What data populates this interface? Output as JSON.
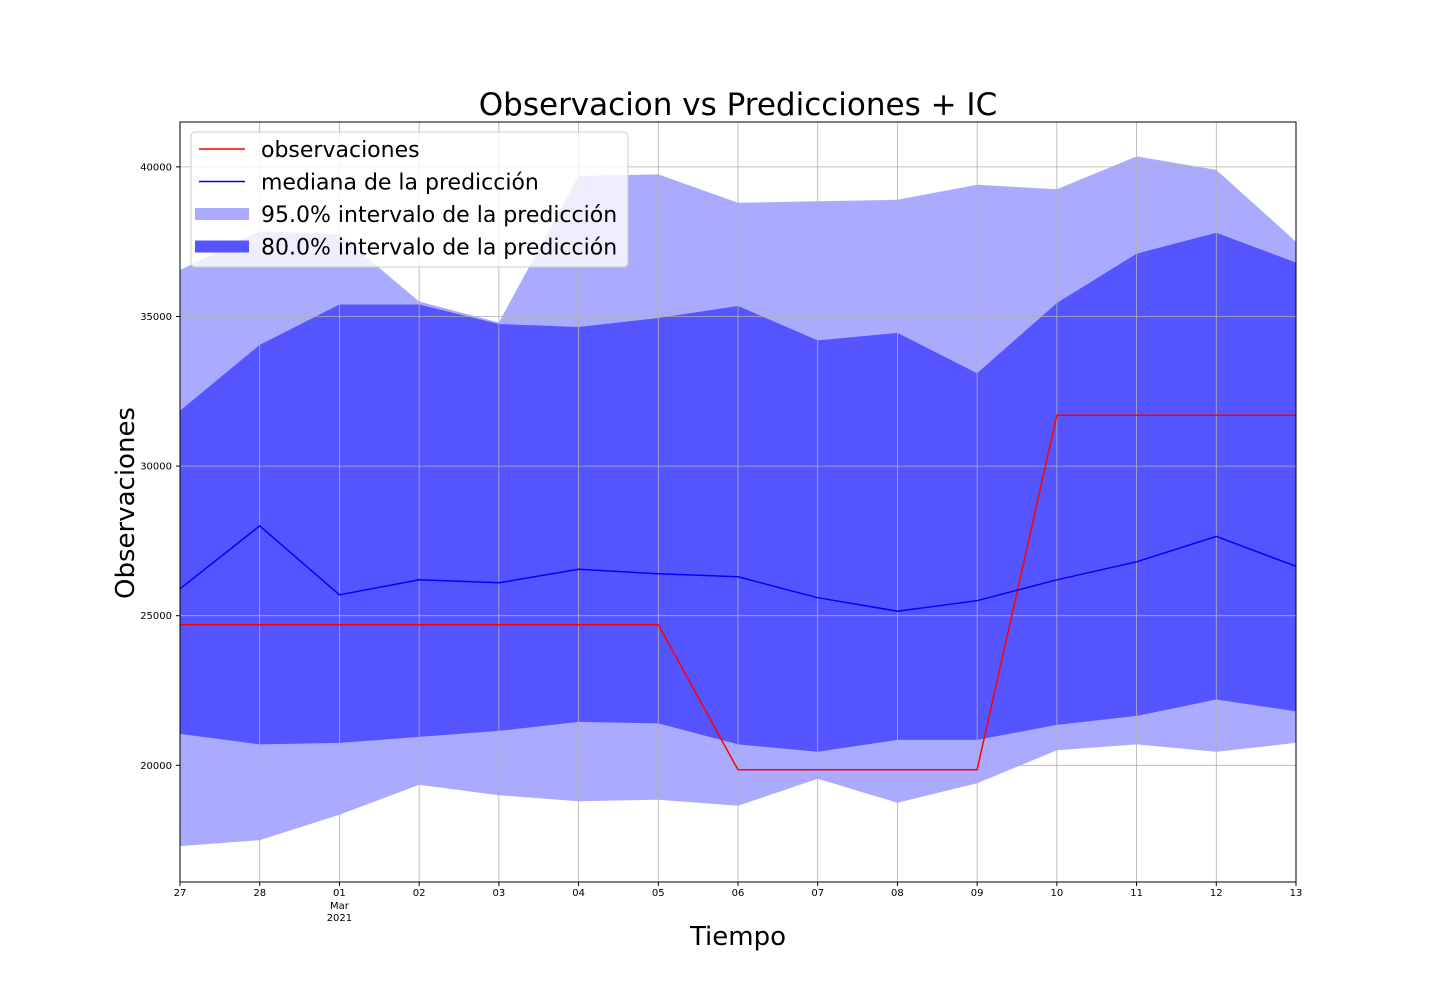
{
  "chart_data": {
    "type": "line",
    "title": "Observacion vs Predicciones + IC",
    "xlabel": "Tiempo",
    "ylabel": "Observaciones",
    "x": [
      "27",
      "28",
      "01",
      "02",
      "03",
      "04",
      "05",
      "06",
      "07",
      "08",
      "09",
      "10",
      "11",
      "12",
      "13"
    ],
    "x_secondary_label": {
      "at": "01",
      "lines": [
        "Mar",
        "2021"
      ]
    },
    "ylim": [
      16100,
      41500
    ],
    "yticks": [
      20000,
      25000,
      30000,
      35000,
      40000
    ],
    "grid": true,
    "legend_position": "top-left",
    "series": [
      {
        "name": "observaciones",
        "kind": "line",
        "color": "#ff0000",
        "values": [
          24700,
          24700,
          24700,
          24700,
          24700,
          24700,
          24700,
          19850,
          19850,
          19850,
          19850,
          31700,
          31700,
          31700,
          31700
        ]
      },
      {
        "name": "mediana de la predicción",
        "kind": "line",
        "color": "#0000ff",
        "values": [
          25900,
          28000,
          25700,
          26200,
          26100,
          26550,
          26400,
          26300,
          25600,
          25150,
          25500,
          26200,
          26800,
          27650,
          26650
        ]
      },
      {
        "name": "95.0% intervalo de la predicción",
        "kind": "band",
        "color": "#aaaaff",
        "lower": [
          17300,
          17500,
          18350,
          19350,
          19000,
          18800,
          18850,
          18650,
          19550,
          18750,
          19400,
          20500,
          20700,
          20450,
          20750
        ],
        "upper": [
          36550,
          37850,
          37750,
          35500,
          34800,
          39700,
          39750,
          38800,
          38850,
          38900,
          39400,
          39250,
          40350,
          39900,
          37500
        ]
      },
      {
        "name": "80.0% intervalo de la predicción",
        "kind": "band",
        "color": "#5555ff",
        "lower": [
          21050,
          20700,
          20750,
          20950,
          21150,
          21450,
          21400,
          20700,
          20450,
          20850,
          20850,
          21350,
          21650,
          22200,
          21800
        ],
        "upper": [
          31850,
          34050,
          35400,
          35400,
          34750,
          34650,
          34950,
          35350,
          34200,
          34450,
          33100,
          35450,
          37100,
          37800,
          36800
        ]
      }
    ]
  }
}
